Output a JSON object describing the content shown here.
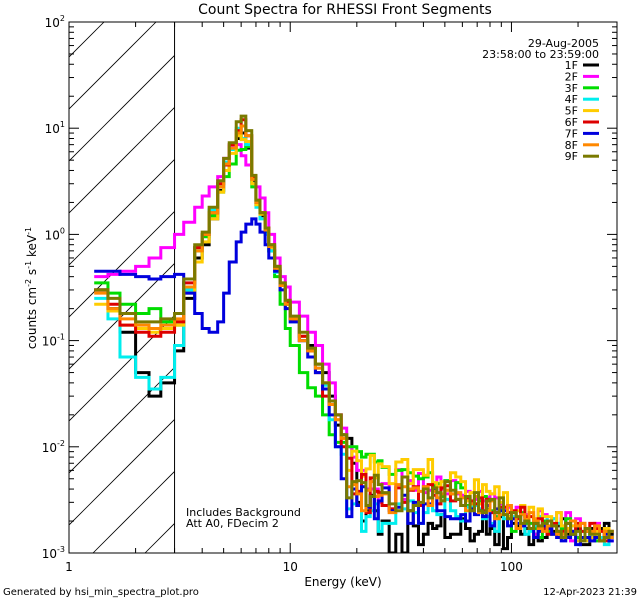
{
  "chart_data": {
    "type": "line",
    "title": "Count Spectra for RHESSI Front Segments",
    "xlabel": "Energy (keV)",
    "ylabel_parts": {
      "base": "counts cm",
      "exp1": "-2",
      "mid1": " s",
      "exp2": "-1",
      "mid2": " keV",
      "exp3": "-1"
    },
    "x_scale": "log",
    "y_scale": "log",
    "xlim": [
      1,
      300
    ],
    "ylim": [
      0.001,
      100
    ],
    "x_tick_labels": [
      {
        "value": 1,
        "label": "1"
      },
      {
        "value": 10,
        "label": "10"
      },
      {
        "value": 100,
        "label": "100"
      }
    ],
    "y_tick_labels": [
      {
        "value": 100,
        "base": "10",
        "exp": "2"
      },
      {
        "value": 10,
        "base": "10",
        "exp": "1"
      },
      {
        "value": 1,
        "base": "10",
        "exp": "0"
      },
      {
        "value": 0.1,
        "base": "10",
        "exp": "-1"
      },
      {
        "value": 0.01,
        "base": "10",
        "exp": "-2"
      },
      {
        "value": 0.001,
        "base": "10",
        "exp": "-3"
      }
    ],
    "shaded_region": {
      "x_from": 1,
      "x_to": 3,
      "pattern": "diagonal-hatch"
    },
    "header_lines": [
      "29-Aug-2005",
      "23:58:00 to 23:59:00"
    ],
    "annotation_lines": [
      "Includes Background",
      "Att A0, FDecim 2"
    ],
    "energy_edges": [
      1.3,
      1.5,
      1.7,
      2.0,
      2.3,
      2.6,
      3.0,
      3.3,
      3.7,
      4.0,
      4.3,
      4.7,
      5.0,
      5.3,
      5.7,
      6.0,
      6.3,
      6.7,
      7.0,
      7.3,
      7.7,
      8.0,
      8.5,
      9.0,
      9.5,
      10.0,
      11.0,
      12.0,
      13.0,
      14.0,
      15.0,
      16.0,
      17.0,
      18.0,
      19.0,
      20.0,
      21.0,
      22.0,
      23.0,
      24.0,
      25.0,
      26.0,
      28.0,
      30.0,
      32.0,
      34.0,
      36.0,
      38.0,
      40.0,
      42.0,
      44.0,
      46.0,
      48.0,
      50.0,
      53.0,
      56.0,
      59.0,
      62.0,
      65.0,
      68.0,
      71.0,
      74.0,
      77.0,
      80.0,
      84.0,
      88.0,
      92.0,
      96.0,
      100.0,
      105.0,
      110.0,
      115.0,
      120.0,
      126.0,
      132.0,
      138.0,
      145.0,
      152.0,
      160.0,
      168.0,
      176.0,
      185.0,
      195.0,
      205.0,
      215.0,
      226.0,
      238.0,
      250.0,
      263.0,
      276.0,
      290.0
    ],
    "series": [
      {
        "name": "1F",
        "color": "#000000",
        "values": [
          0.3,
          0.2,
          0.12,
          0.05,
          0.03,
          0.04,
          0.08,
          0.25,
          0.6,
          0.8,
          1.4,
          2.6,
          4.5,
          6.5,
          8.0,
          9.0,
          6.5,
          3.2,
          1.9,
          1.5,
          1.05,
          0.7,
          0.45,
          0.33,
          0.22,
          0.16,
          0.1,
          0.09,
          0.06,
          0.05,
          0.03,
          0.016,
          0.013,
          0.012,
          0.007,
          0.003,
          0.002,
          0.0025,
          0.0035,
          0.0025,
          0.0015,
          0.002,
          0.001,
          0.0015,
          0.001,
          0.0025,
          0.0018,
          0.0012,
          0.0015,
          0.0019,
          0.0017,
          0.0018,
          0.0023,
          0.0014,
          0.0015,
          0.0015,
          0.0021,
          0.0017,
          0.0013,
          0.0015,
          0.0016,
          0.0022,
          0.0015,
          0.0017,
          0.0012,
          0.0022,
          0.0011,
          0.0014,
          0.0019,
          0.0018,
          0.0015,
          0.0017,
          0.0012,
          0.0015,
          0.0013,
          0.0014,
          0.0017,
          0.0016,
          0.0018,
          0.0021,
          0.0015,
          0.0015,
          0.0017,
          0.0012,
          0.0012,
          0.0017,
          0.0017,
          0.0017,
          0.0019,
          0.0015
        ]
      },
      {
        "name": "2F",
        "color": "#ff00ff",
        "values": [
          0.4,
          0.42,
          0.45,
          0.5,
          0.6,
          0.75,
          1.0,
          1.3,
          1.8,
          2.3,
          2.8,
          3.5,
          5.2,
          6.8,
          7.0,
          5.5,
          4.5,
          3.4,
          2.8,
          2.2,
          1.6,
          1.0,
          0.6,
          0.4,
          0.32,
          0.23,
          0.17,
          0.12,
          0.09,
          0.06,
          0.04,
          0.02,
          0.015,
          0.01,
          0.008,
          0.006,
          0.006,
          0.004,
          0.004,
          0.004,
          0.003,
          0.0045,
          0.0026,
          0.0061,
          0.0032,
          0.0048,
          0.0039,
          0.0056,
          0.0037,
          0.0039,
          0.0043,
          0.0052,
          0.004,
          0.0036,
          0.0048,
          0.0036,
          0.0035,
          0.0038,
          0.003,
          0.0032,
          0.0038,
          0.0031,
          0.0033,
          0.0036,
          0.0033,
          0.0029,
          0.0027,
          0.0027,
          0.0021,
          0.0027,
          0.0018,
          0.0023,
          0.0017,
          0.0015,
          0.0025,
          0.0023,
          0.0016,
          0.0021,
          0.0024,
          0.0015,
          0.0024,
          0.0013,
          0.0021,
          0.0019,
          0.0014,
          0.0013,
          0.0019,
          0.0013,
          0.0014,
          0.0013
        ]
      },
      {
        "name": "3F",
        "color": "#00dd00",
        "values": [
          0.35,
          0.28,
          0.22,
          0.18,
          0.2,
          0.15,
          0.14,
          0.3,
          0.7,
          0.95,
          1.5,
          2.5,
          3.5,
          4.6,
          6.2,
          6.3,
          6.7,
          2.8,
          1.9,
          1.6,
          1.05,
          0.7,
          0.4,
          0.22,
          0.13,
          0.09,
          0.05,
          0.036,
          0.03,
          0.02,
          0.013,
          0.011,
          0.011,
          0.01,
          0.01,
          0.009,
          0.008,
          0.0085,
          0.0085,
          0.0072,
          0.0074,
          0.0064,
          0.0055,
          0.006,
          0.0061,
          0.0057,
          0.0053,
          0.005,
          0.0052,
          0.0057,
          0.0043,
          0.0045,
          0.0034,
          0.0048,
          0.0036,
          0.0046,
          0.0041,
          0.0028,
          0.0027,
          0.0029,
          0.0031,
          0.0034,
          0.0026,
          0.0025,
          0.0022,
          0.0025,
          0.0023,
          0.0022,
          0.0016,
          0.0019,
          0.0024,
          0.0019,
          0.0019,
          0.0017,
          0.0014,
          0.002,
          0.0016,
          0.0015,
          0.0015,
          0.0017,
          0.0021,
          0.0015,
          0.0014,
          0.0013,
          0.0013,
          0.0016,
          0.0013,
          0.0014,
          0.0016,
          0.0014
        ]
      },
      {
        "name": "4F",
        "color": "#00eeee",
        "values": [
          0.25,
          0.16,
          0.07,
          0.045,
          0.035,
          0.045,
          0.09,
          0.3,
          0.75,
          1.0,
          1.7,
          3.0,
          4.8,
          6.3,
          10.0,
          8.0,
          7.0,
          3.0,
          1.8,
          1.4,
          1.0,
          0.7,
          0.44,
          0.33,
          0.23,
          0.15,
          0.11,
          0.08,
          0.055,
          0.038,
          0.018,
          0.01,
          0.0085,
          0.0026,
          0.0029,
          0.0028,
          0.0016,
          0.0022,
          0.0025,
          0.0029,
          0.0016,
          0.0019,
          0.0019,
          0.0029,
          0.0026,
          0.0031,
          0.0024,
          0.0019,
          0.0024,
          0.0033,
          0.0025,
          0.0023,
          0.0023,
          0.0032,
          0.0025,
          0.0022,
          0.002,
          0.0027,
          0.0027,
          0.0028,
          0.0026,
          0.0021,
          0.0022,
          0.0019,
          0.0016,
          0.0026,
          0.0021,
          0.0021,
          0.0022,
          0.0021,
          0.0023,
          0.0015,
          0.0016,
          0.0018,
          0.0022,
          0.0022,
          0.0017,
          0.0021,
          0.0019,
          0.0018,
          0.0014,
          0.0018,
          0.0018,
          0.0013,
          0.0013,
          0.0015,
          0.0016,
          0.0014,
          0.0012,
          0.0014
        ]
      },
      {
        "name": "5F",
        "color": "#ffcc00",
        "values": [
          0.22,
          0.19,
          0.14,
          0.13,
          0.12,
          0.13,
          0.14,
          0.28,
          0.55,
          0.85,
          1.4,
          2.5,
          4.0,
          5.8,
          8.5,
          7.8,
          7.5,
          3.0,
          1.9,
          1.55,
          1.1,
          0.75,
          0.47,
          0.33,
          0.22,
          0.16,
          0.11,
          0.08,
          0.06,
          0.04,
          0.025,
          0.018,
          0.012,
          0.006,
          0.0091,
          0.0074,
          0.0053,
          0.0062,
          0.0083,
          0.0051,
          0.0069,
          0.0065,
          0.0045,
          0.0072,
          0.0076,
          0.0045,
          0.0061,
          0.0061,
          0.0054,
          0.0076,
          0.0046,
          0.0042,
          0.0047,
          0.0039,
          0.0057,
          0.0052,
          0.0047,
          0.0031,
          0.0037,
          0.0049,
          0.0029,
          0.0044,
          0.0038,
          0.0036,
          0.0042,
          0.003,
          0.0037,
          0.0022,
          0.0021,
          0.0025,
          0.0028,
          0.0021,
          0.0027,
          0.0021,
          0.0026,
          0.0022,
          0.0022,
          0.0018,
          0.0024,
          0.0018,
          0.0017,
          0.0018,
          0.0013,
          0.0013,
          0.0013,
          0.0014,
          0.0016,
          0.0013,
          0.0017,
          0.0016
        ]
      },
      {
        "name": "6F",
        "color": "#dd0000",
        "values": [
          0.3,
          0.22,
          0.14,
          0.12,
          0.11,
          0.12,
          0.15,
          0.35,
          0.75,
          1.0,
          1.6,
          3.0,
          4.5,
          7.0,
          9.5,
          12.0,
          8.5,
          3.5,
          2.0,
          1.6,
          1.15,
          0.8,
          0.5,
          0.33,
          0.23,
          0.16,
          0.11,
          0.08,
          0.05,
          0.03,
          0.025,
          0.02,
          0.01,
          0.0078,
          0.0036,
          0.0038,
          0.0055,
          0.0024,
          0.0051,
          0.0038,
          0.0037,
          0.0028,
          0.0026,
          0.0041,
          0.003,
          0.0039,
          0.0042,
          0.0028,
          0.0042,
          0.0044,
          0.0035,
          0.0029,
          0.0041,
          0.0043,
          0.0031,
          0.0032,
          0.0028,
          0.0033,
          0.0031,
          0.0029,
          0.0033,
          0.0025,
          0.0032,
          0.0024,
          0.0024,
          0.0027,
          0.0027,
          0.0024,
          0.0025,
          0.0021,
          0.0027,
          0.0022,
          0.0022,
          0.0019,
          0.0021,
          0.0017,
          0.0015,
          0.0019,
          0.0016,
          0.0016,
          0.0019,
          0.0016,
          0.0019,
          0.0016,
          0.0016,
          0.0019,
          0.0017,
          0.0016,
          0.0013,
          0.0016
        ]
      },
      {
        "name": "7F",
        "color": "#0000dd",
        "values": [
          0.45,
          0.45,
          0.42,
          0.4,
          0.38,
          0.4,
          0.42,
          0.28,
          0.18,
          0.13,
          0.12,
          0.15,
          0.28,
          0.55,
          0.85,
          1.05,
          1.25,
          1.4,
          1.25,
          1.05,
          0.8,
          0.6,
          0.45,
          0.3,
          0.2,
          0.15,
          0.1,
          0.07,
          0.05,
          0.035,
          0.02,
          0.01,
          0.005,
          0.0022,
          0.004,
          0.0028,
          0.0042,
          0.0027,
          0.0034,
          0.0021,
          0.0031,
          0.0041,
          0.0025,
          0.0027,
          0.0035,
          0.0019,
          0.003,
          0.0019,
          0.0029,
          0.0029,
          0.0039,
          0.0025,
          0.0025,
          0.0022,
          0.0021,
          0.0021,
          0.0023,
          0.002,
          0.0026,
          0.0023,
          0.0025,
          0.0022,
          0.0028,
          0.0018,
          0.0026,
          0.0025,
          0.0025,
          0.0018,
          0.0021,
          0.0019,
          0.0018,
          0.002,
          0.0017,
          0.0014,
          0.0016,
          0.0018,
          0.0017,
          0.0015,
          0.0014,
          0.0013,
          0.0014,
          0.0016,
          0.0012,
          0.0014,
          0.0014,
          0.0013,
          0.0014,
          0.0013,
          0.0015,
          0.0013
        ]
      },
      {
        "name": "8F",
        "color": "#ff8800",
        "values": [
          0.28,
          0.2,
          0.16,
          0.14,
          0.13,
          0.14,
          0.16,
          0.32,
          0.7,
          1.0,
          1.6,
          2.8,
          4.6,
          6.5,
          9.0,
          10.5,
          8.5,
          3.3,
          2.0,
          1.6,
          1.1,
          0.77,
          0.48,
          0.33,
          0.22,
          0.16,
          0.1,
          0.08,
          0.055,
          0.04,
          0.025,
          0.018,
          0.012,
          0.0042,
          0.0044,
          0.0036,
          0.0025,
          0.0039,
          0.0047,
          0.0034,
          0.0035,
          0.0036,
          0.0024,
          0.0044,
          0.0042,
          0.004,
          0.0041,
          0.0038,
          0.0042,
          0.0028,
          0.0038,
          0.0033,
          0.0036,
          0.0039,
          0.0036,
          0.0037,
          0.0033,
          0.0025,
          0.0029,
          0.0034,
          0.0024,
          0.0024,
          0.0025,
          0.0031,
          0.0021,
          0.0023,
          0.0023,
          0.0028,
          0.0024,
          0.0017,
          0.0023,
          0.002,
          0.0024,
          0.002,
          0.0017,
          0.0016,
          0.0018,
          0.0018,
          0.0015,
          0.0015,
          0.0016,
          0.002,
          0.0018,
          0.0019,
          0.0016,
          0.0016,
          0.0018,
          0.0013,
          0.0016,
          0.0014
        ]
      },
      {
        "name": "9F",
        "color": "#7a7a00",
        "values": [
          0.3,
          0.25,
          0.18,
          0.15,
          0.15,
          0.16,
          0.18,
          0.38,
          0.8,
          1.05,
          1.8,
          3.2,
          5.2,
          7.3,
          11.5,
          13.0,
          9.5,
          3.6,
          2.1,
          1.6,
          1.15,
          0.8,
          0.5,
          0.35,
          0.24,
          0.17,
          0.12,
          0.085,
          0.06,
          0.04,
          0.027,
          0.02,
          0.013,
          0.0033,
          0.0047,
          0.0048,
          0.0046,
          0.0028,
          0.0034,
          0.0054,
          0.0044,
          0.0037,
          0.0029,
          0.0025,
          0.0052,
          0.0025,
          0.0028,
          0.003,
          0.004,
          0.0033,
          0.0041,
          0.0037,
          0.0031,
          0.0047,
          0.0039,
          0.0032,
          0.0028,
          0.0034,
          0.0025,
          0.0037,
          0.0025,
          0.0024,
          0.0031,
          0.0032,
          0.0024,
          0.0033,
          0.0023,
          0.0021,
          0.0024,
          0.0022,
          0.0019,
          0.002,
          0.0017,
          0.0019,
          0.0018,
          0.0019,
          0.002,
          0.0018,
          0.0016,
          0.0014,
          0.0019,
          0.0015,
          0.0016,
          0.0013,
          0.0017,
          0.0015,
          0.0015,
          0.0013,
          0.0014,
          0.0016
        ]
      }
    ]
  },
  "footer": {
    "generator": "Generated by hsi_min_spectra_plot.pro",
    "timestamp": "12-Apr-2023 21:39"
  }
}
